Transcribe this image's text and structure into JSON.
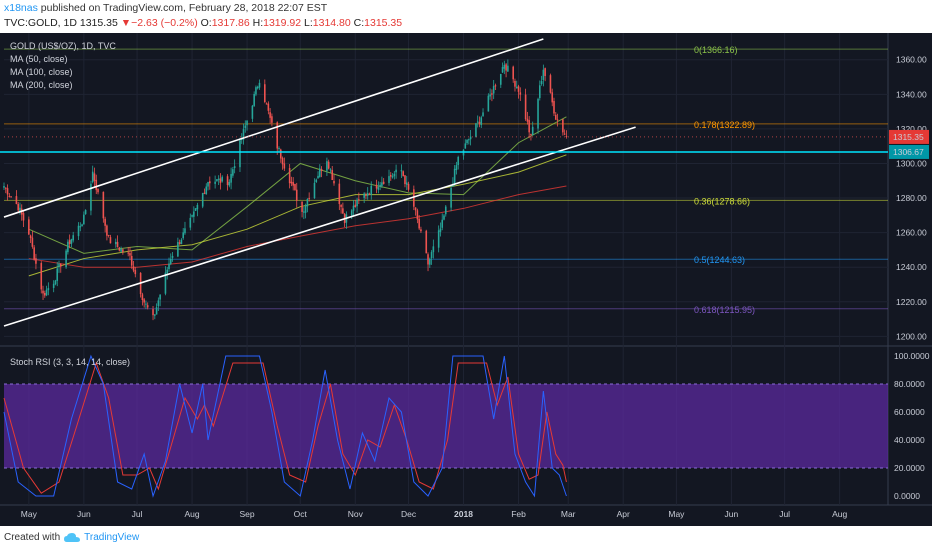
{
  "header": {
    "user": "x18nas",
    "published_text": "published on TradingView.com, February 28, 2018 22:07 EST",
    "symbol": "TVC:GOLD, 1D",
    "last": "1315.35",
    "change_symbol": "▼",
    "change": "−2.63 (−0.2%)",
    "o_label": "O:",
    "o_value": "1317.86",
    "h_label": "H:",
    "h_value": "1319.92",
    "l_label": "L:",
    "l_value": "1314.80",
    "c_label": "C:",
    "c_value": "1315.35"
  },
  "legend": {
    "title": "GOLD (US$/OZ), 1D, TVC",
    "ma50": "MA (50, close)",
    "ma100": "MA (100, close)",
    "ma200": "MA (200, close)",
    "stoch_title": "Stoch RSI (3, 3, 14, 14, close)"
  },
  "footer": {
    "created_with": "Created with",
    "brand": "TradingView"
  },
  "colors": {
    "background": "#131722",
    "up_candle": "#26a69a",
    "down_candle": "#ef5350",
    "ma50": "#8bc34a",
    "ma100": "#cddc39",
    "ma200": "#e53935",
    "channel": "#ffffff",
    "horizontal_line": "#00e5ff",
    "stoch_k": "#2962ff",
    "stoch_d": "#e53935",
    "stoch_band": "#5b2a9e"
  },
  "chart_data": {
    "type": "candlestick",
    "symbol": "GOLD (US$/OZ)",
    "interval": "1D",
    "y_range": [
      1195,
      1372
    ],
    "y_ticks": [
      "1360.00",
      "1340.00",
      "1320.00",
      "1300.00",
      "1280.00",
      "1260.00",
      "1240.00",
      "1220.00",
      "1200.00"
    ],
    "y_tick_values": [
      1360,
      1340,
      1320,
      1300,
      1280,
      1260,
      1240,
      1220,
      1200
    ],
    "x_ticks": [
      "May",
      "Jun",
      "Jul",
      "Aug",
      "Sep",
      "Oct",
      "Nov",
      "Dec",
      "2018",
      "Feb",
      "Mar",
      "Apr",
      "May",
      "Jun",
      "Jul",
      "Aug"
    ],
    "price_path": [
      {
        "date": "2017-04-17",
        "close": 1287
      },
      {
        "date": "2017-04-25",
        "close": 1275
      },
      {
        "date": "2017-05-01",
        "close": 1260
      },
      {
        "date": "2017-05-09",
        "close": 1224
      },
      {
        "date": "2017-05-15",
        "close": 1232
      },
      {
        "date": "2017-05-24",
        "close": 1255
      },
      {
        "date": "2017-06-01",
        "close": 1268
      },
      {
        "date": "2017-06-06",
        "close": 1295
      },
      {
        "date": "2017-06-15",
        "close": 1256
      },
      {
        "date": "2017-06-27",
        "close": 1246
      },
      {
        "date": "2017-07-05",
        "close": 1220
      },
      {
        "date": "2017-07-10",
        "close": 1210
      },
      {
        "date": "2017-07-20",
        "close": 1246
      },
      {
        "date": "2017-08-01",
        "close": 1268
      },
      {
        "date": "2017-08-10",
        "close": 1290
      },
      {
        "date": "2017-08-22",
        "close": 1290
      },
      {
        "date": "2017-09-01",
        "close": 1325
      },
      {
        "date": "2017-09-08",
        "close": 1349
      },
      {
        "date": "2017-09-18",
        "close": 1310
      },
      {
        "date": "2017-10-02",
        "close": 1272
      },
      {
        "date": "2017-10-10",
        "close": 1292
      },
      {
        "date": "2017-10-16",
        "close": 1303
      },
      {
        "date": "2017-10-26",
        "close": 1268
      },
      {
        "date": "2017-11-06",
        "close": 1282
      },
      {
        "date": "2017-11-16",
        "close": 1290
      },
      {
        "date": "2017-11-27",
        "close": 1296
      },
      {
        "date": "2017-12-04",
        "close": 1275
      },
      {
        "date": "2017-12-12",
        "close": 1242
      },
      {
        "date": "2017-12-20",
        "close": 1265
      },
      {
        "date": "2017-12-29",
        "close": 1303
      },
      {
        "date": "2018-01-10",
        "close": 1325
      },
      {
        "date": "2018-01-24",
        "close": 1358
      },
      {
        "date": "2018-02-01",
        "close": 1343
      },
      {
        "date": "2018-02-08",
        "close": 1315
      },
      {
        "date": "2018-02-15",
        "close": 1355
      },
      {
        "date": "2018-02-22",
        "close": 1327
      },
      {
        "date": "2018-02-28",
        "close": 1315.35
      }
    ],
    "moving_averages": [
      {
        "name": "MA (50, close)",
        "points": [
          {
            "date": "2017-05-01",
            "v": 1262
          },
          {
            "date": "2017-06-01",
            "v": 1248
          },
          {
            "date": "2017-07-01",
            "v": 1252
          },
          {
            "date": "2017-08-01",
            "v": 1250
          },
          {
            "date": "2017-09-01",
            "v": 1275
          },
          {
            "date": "2017-10-01",
            "v": 1300
          },
          {
            "date": "2017-11-01",
            "v": 1290
          },
          {
            "date": "2017-12-01",
            "v": 1283
          },
          {
            "date": "2018-01-01",
            "v": 1282
          },
          {
            "date": "2018-02-01",
            "v": 1312
          },
          {
            "date": "2018-02-28",
            "v": 1327
          }
        ]
      },
      {
        "name": "MA (100, close)",
        "points": [
          {
            "date": "2017-05-01",
            "v": 1235
          },
          {
            "date": "2017-06-01",
            "v": 1245
          },
          {
            "date": "2017-07-01",
            "v": 1250
          },
          {
            "date": "2017-08-01",
            "v": 1253
          },
          {
            "date": "2017-09-01",
            "v": 1262
          },
          {
            "date": "2017-10-01",
            "v": 1275
          },
          {
            "date": "2017-11-01",
            "v": 1282
          },
          {
            "date": "2017-12-01",
            "v": 1282
          },
          {
            "date": "2018-01-01",
            "v": 1288
          },
          {
            "date": "2018-02-01",
            "v": 1295
          },
          {
            "date": "2018-02-28",
            "v": 1305
          }
        ]
      },
      {
        "name": "MA (200, close)",
        "points": [
          {
            "date": "2017-05-01",
            "v": 1245
          },
          {
            "date": "2017-06-01",
            "v": 1240
          },
          {
            "date": "2017-07-01",
            "v": 1240
          },
          {
            "date": "2017-08-01",
            "v": 1243
          },
          {
            "date": "2017-09-01",
            "v": 1252
          },
          {
            "date": "2017-10-01",
            "v": 1258
          },
          {
            "date": "2017-11-01",
            "v": 1264
          },
          {
            "date": "2017-12-01",
            "v": 1268
          },
          {
            "date": "2018-01-01",
            "v": 1274
          },
          {
            "date": "2018-02-01",
            "v": 1282
          },
          {
            "date": "2018-02-28",
            "v": 1287
          }
        ]
      }
    ],
    "trend_lines": [
      {
        "name": "upper-channel",
        "from": {
          "date": "2017-04-17",
          "price": 1269
        },
        "to": {
          "date": "2018-02-15",
          "price": 1372
        }
      },
      {
        "name": "lower-channel",
        "from": {
          "date": "2017-04-17",
          "price": 1206
        },
        "to": {
          "date": "2018-04-08",
          "price": 1321
        }
      }
    ],
    "horizontal_line": {
      "price": 1306.67,
      "label": "1306.67"
    },
    "last_price_label": "1315.35",
    "fibonacci": [
      {
        "ratio": "0",
        "price": 1366.16,
        "label": "0(1366.16)",
        "color": "#8bc34a"
      },
      {
        "ratio": "0.178",
        "price": 1322.89,
        "label": "0.178(1322.89)",
        "color": "#ff9800"
      },
      {
        "ratio": "0.36",
        "price": 1278.66,
        "label": "0.36(1278.66)",
        "color": "#cddc39"
      },
      {
        "ratio": "0.5",
        "price": 1244.63,
        "label": "0.5(1244.63)",
        "color": "#2196f3"
      },
      {
        "ratio": "0.618",
        "price": 1215.95,
        "label": "0.618(1215.95)",
        "color": "#7e57c2"
      }
    ],
    "stoch_rsi": {
      "y_range": [
        -5,
        105
      ],
      "y_ticks": [
        "100.0000",
        "80.0000",
        "60.0000",
        "40.0000",
        "20.0000",
        "0.0000"
      ],
      "y_tick_values": [
        100,
        80,
        60,
        40,
        20,
        0
      ],
      "band": [
        20,
        80
      ],
      "k": [
        {
          "date": "2017-04-17",
          "v": 60
        },
        {
          "date": "2017-04-25",
          "v": 10
        },
        {
          "date": "2017-05-05",
          "v": 0
        },
        {
          "date": "2017-05-15",
          "v": 0
        },
        {
          "date": "2017-05-25",
          "v": 55
        },
        {
          "date": "2017-06-05",
          "v": 100
        },
        {
          "date": "2017-06-12",
          "v": 80
        },
        {
          "date": "2017-06-20",
          "v": 10
        },
        {
          "date": "2017-06-28",
          "v": 5
        },
        {
          "date": "2017-07-05",
          "v": 30
        },
        {
          "date": "2017-07-10",
          "v": 0
        },
        {
          "date": "2017-07-17",
          "v": 25
        },
        {
          "date": "2017-07-25",
          "v": 80
        },
        {
          "date": "2017-08-01",
          "v": 45
        },
        {
          "date": "2017-08-07",
          "v": 80
        },
        {
          "date": "2017-08-10",
          "v": 40
        },
        {
          "date": "2017-08-20",
          "v": 100
        },
        {
          "date": "2017-09-08",
          "v": 100
        },
        {
          "date": "2017-09-15",
          "v": 60
        },
        {
          "date": "2017-09-22",
          "v": 10
        },
        {
          "date": "2017-10-01",
          "v": 0
        },
        {
          "date": "2017-10-08",
          "v": 40
        },
        {
          "date": "2017-10-15",
          "v": 90
        },
        {
          "date": "2017-10-22",
          "v": 40
        },
        {
          "date": "2017-10-29",
          "v": 5
        },
        {
          "date": "2017-11-05",
          "v": 45
        },
        {
          "date": "2017-11-12",
          "v": 25
        },
        {
          "date": "2017-11-20",
          "v": 70
        },
        {
          "date": "2017-11-27",
          "v": 60
        },
        {
          "date": "2017-12-04",
          "v": 10
        },
        {
          "date": "2017-12-12",
          "v": 0
        },
        {
          "date": "2017-12-20",
          "v": 20
        },
        {
          "date": "2017-12-26",
          "v": 100
        },
        {
          "date": "2018-01-12",
          "v": 100
        },
        {
          "date": "2018-01-18",
          "v": 55
        },
        {
          "date": "2018-01-24",
          "v": 100
        },
        {
          "date": "2018-01-30",
          "v": 30
        },
        {
          "date": "2018-02-05",
          "v": 10
        },
        {
          "date": "2018-02-10",
          "v": 0
        },
        {
          "date": "2018-02-15",
          "v": 75
        },
        {
          "date": "2018-02-20",
          "v": 20
        },
        {
          "date": "2018-02-24",
          "v": 15
        },
        {
          "date": "2018-02-28",
          "v": 0
        }
      ],
      "d": [
        {
          "date": "2017-04-17",
          "v": 70
        },
        {
          "date": "2017-04-28",
          "v": 20
        },
        {
          "date": "2017-05-08",
          "v": 2
        },
        {
          "date": "2017-05-18",
          "v": 10
        },
        {
          "date": "2017-05-28",
          "v": 50
        },
        {
          "date": "2017-06-08",
          "v": 95
        },
        {
          "date": "2017-06-15",
          "v": 70
        },
        {
          "date": "2017-06-23",
          "v": 15
        },
        {
          "date": "2017-07-01",
          "v": 15
        },
        {
          "date": "2017-07-08",
          "v": 20
        },
        {
          "date": "2017-07-13",
          "v": 5
        },
        {
          "date": "2017-07-20",
          "v": 35
        },
        {
          "date": "2017-07-28",
          "v": 70
        },
        {
          "date": "2017-08-04",
          "v": 55
        },
        {
          "date": "2017-08-08",
          "v": 65
        },
        {
          "date": "2017-08-13",
          "v": 50
        },
        {
          "date": "2017-08-24",
          "v": 95
        },
        {
          "date": "2017-09-10",
          "v": 95
        },
        {
          "date": "2017-09-18",
          "v": 50
        },
        {
          "date": "2017-09-25",
          "v": 15
        },
        {
          "date": "2017-10-04",
          "v": 10
        },
        {
          "date": "2017-10-11",
          "v": 50
        },
        {
          "date": "2017-10-18",
          "v": 80
        },
        {
          "date": "2017-10-25",
          "v": 30
        },
        {
          "date": "2017-11-01",
          "v": 15
        },
        {
          "date": "2017-11-08",
          "v": 40
        },
        {
          "date": "2017-11-15",
          "v": 35
        },
        {
          "date": "2017-11-23",
          "v": 65
        },
        {
          "date": "2017-11-30",
          "v": 40
        },
        {
          "date": "2017-12-07",
          "v": 10
        },
        {
          "date": "2017-12-15",
          "v": 5
        },
        {
          "date": "2017-12-23",
          "v": 40
        },
        {
          "date": "2017-12-29",
          "v": 95
        },
        {
          "date": "2018-01-14",
          "v": 95
        },
        {
          "date": "2018-01-20",
          "v": 65
        },
        {
          "date": "2018-01-26",
          "v": 85
        },
        {
          "date": "2018-02-01",
          "v": 30
        },
        {
          "date": "2018-02-07",
          "v": 12
        },
        {
          "date": "2018-02-12",
          "v": 15
        },
        {
          "date": "2018-02-17",
          "v": 60
        },
        {
          "date": "2018-02-22",
          "v": 30
        },
        {
          "date": "2018-02-26",
          "v": 22
        },
        {
          "date": "2018-02-28",
          "v": 10
        }
      ]
    }
  }
}
